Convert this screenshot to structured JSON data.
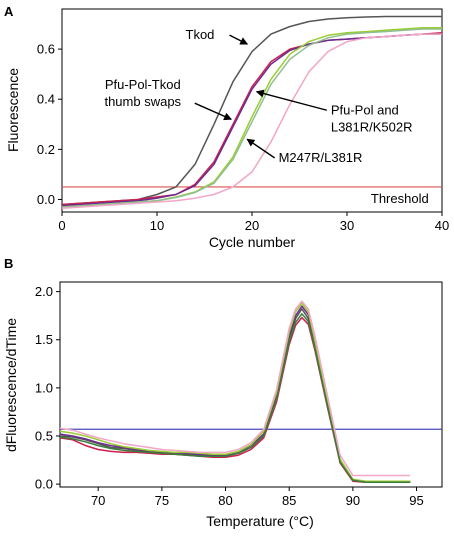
{
  "chart_data": [
    {
      "type": "line",
      "panel": "A",
      "xlabel": "Cycle number",
      "ylabel": "Fluorescence",
      "xlim": [
        0,
        40
      ],
      "ylim": [
        -0.05,
        0.76
      ],
      "xticks": [
        "0",
        "10",
        "20",
        "30",
        "40"
      ],
      "yticks": [
        "0.0",
        "0.2",
        "0.4",
        "0.6"
      ],
      "grid": false,
      "threshold": {
        "label": "Threshold",
        "value": 0.05,
        "color": "#d9534f"
      },
      "series": [
        {
          "color": "#555555",
          "x": [
            0,
            2,
            4,
            6,
            8,
            10,
            12,
            14,
            16,
            18,
            20,
            22,
            24,
            26,
            28,
            30,
            32,
            34,
            36,
            38,
            40
          ],
          "y": [
            -0.02,
            -0.015,
            -0.01,
            -0.005,
            0.0,
            0.02,
            0.05,
            0.14,
            0.3,
            0.47,
            0.59,
            0.66,
            0.69,
            0.71,
            0.72,
            0.725,
            0.728,
            0.73,
            0.73,
            0.73,
            0.73
          ]
        },
        {
          "color": "#cc1f4d",
          "x": [
            0,
            2,
            4,
            6,
            8,
            10,
            12,
            14,
            16,
            18,
            20,
            22,
            24,
            26,
            28,
            30,
            32,
            34,
            36,
            38,
            40
          ],
          "y": [
            -0.02,
            -0.015,
            -0.01,
            -0.005,
            0.0,
            0.01,
            0.02,
            0.06,
            0.15,
            0.3,
            0.45,
            0.55,
            0.6,
            0.62,
            0.635,
            0.64,
            0.645,
            0.65,
            0.655,
            0.66,
            0.665
          ]
        },
        {
          "color": "#6b2c91",
          "x": [
            0,
            2,
            4,
            6,
            8,
            10,
            12,
            14,
            16,
            18,
            20,
            22,
            24,
            26,
            28,
            30,
            32,
            34,
            36,
            38,
            40
          ],
          "y": [
            -0.025,
            -0.02,
            -0.015,
            -0.01,
            -0.005,
            0.005,
            0.02,
            0.055,
            0.14,
            0.29,
            0.44,
            0.54,
            0.595,
            0.62,
            0.635,
            0.64,
            0.645,
            0.65,
            0.655,
            0.66,
            0.66
          ]
        },
        {
          "color": "#9acd32",
          "x": [
            0,
            2,
            4,
            6,
            8,
            10,
            12,
            14,
            16,
            18,
            20,
            22,
            24,
            26,
            28,
            30,
            32,
            34,
            36,
            38,
            40
          ],
          "y": [
            -0.03,
            -0.025,
            -0.02,
            -0.015,
            -0.01,
            -0.005,
            0.01,
            0.03,
            0.07,
            0.17,
            0.33,
            0.48,
            0.58,
            0.63,
            0.655,
            0.665,
            0.67,
            0.675,
            0.68,
            0.685,
            0.685
          ]
        },
        {
          "color": "#8fbf8f",
          "x": [
            0,
            2,
            4,
            6,
            8,
            10,
            12,
            14,
            16,
            18,
            20,
            22,
            24,
            26,
            28,
            30,
            32,
            34,
            36,
            38,
            40
          ],
          "y": [
            -0.03,
            -0.025,
            -0.02,
            -0.015,
            -0.01,
            -0.005,
            0.008,
            0.028,
            0.065,
            0.16,
            0.31,
            0.46,
            0.56,
            0.615,
            0.645,
            0.66,
            0.665,
            0.67,
            0.675,
            0.68,
            0.68
          ]
        },
        {
          "color": "#f2a6c8",
          "x": [
            0,
            2,
            4,
            6,
            8,
            10,
            12,
            14,
            16,
            18,
            20,
            22,
            24,
            26,
            28,
            30,
            32,
            34,
            36,
            38,
            40
          ],
          "y": [
            -0.035,
            -0.03,
            -0.025,
            -0.02,
            -0.015,
            -0.01,
            -0.005,
            0.005,
            0.02,
            0.05,
            0.11,
            0.23,
            0.38,
            0.51,
            0.59,
            0.63,
            0.645,
            0.65,
            0.655,
            0.66,
            0.66
          ]
        }
      ],
      "annotations": [
        {
          "text": [
            "Tkod"
          ],
          "x": 13,
          "y": 0.64,
          "arrow_to": [
            19.5,
            0.62
          ]
        },
        {
          "text": [
            "Pfu-Pol-Tkod",
            "thumb swaps"
          ],
          "x": 8.5,
          "y": 0.44,
          "arrow_to": [
            17.8,
            0.32
          ]
        },
        {
          "text": [
            "Pfu-Pol and",
            "L381R/K502R"
          ],
          "x": 28.3,
          "y": 0.34,
          "arrow_to": [
            20.5,
            0.43
          ]
        },
        {
          "text": [
            "M247R/L381R"
          ],
          "x": 22.8,
          "y": 0.15,
          "arrow_to": [
            19.5,
            0.24
          ]
        }
      ]
    },
    {
      "type": "line",
      "panel": "B",
      "xlabel": "Temperature (°C)",
      "ylabel": "dFluorescence/dTime",
      "xlim": [
        67,
        97
      ],
      "ylim": [
        -0.03,
        2.1
      ],
      "xticks": [
        "70",
        "75",
        "80",
        "85",
        "90",
        "95"
      ],
      "yticks": [
        "0.0",
        "0.5",
        "1.0",
        "1.5",
        "2.0"
      ],
      "grid": false,
      "threshold": {
        "value": 0.57,
        "color": "#4a4ab8"
      },
      "series": [
        {
          "color": "#555555",
          "x": [
            67,
            68,
            69,
            70,
            71,
            72,
            73,
            74,
            75,
            76,
            77,
            78,
            79,
            80,
            81,
            82,
            83,
            84,
            85,
            85.5,
            86,
            86.5,
            87,
            88,
            89,
            90,
            91,
            92,
            93,
            94.5
          ],
          "y": [
            0.5,
            0.49,
            0.46,
            0.42,
            0.38,
            0.37,
            0.35,
            0.33,
            0.32,
            0.32,
            0.31,
            0.3,
            0.29,
            0.29,
            0.32,
            0.38,
            0.5,
            0.9,
            1.52,
            1.72,
            1.82,
            1.72,
            1.45,
            0.85,
            0.25,
            0.04,
            0.02,
            0.02,
            0.02,
            0.02
          ]
        },
        {
          "color": "#cc1f4d",
          "x": [
            67,
            68,
            69,
            70,
            71,
            72,
            73,
            74,
            75,
            76,
            77,
            78,
            79,
            80,
            81,
            82,
            83,
            84,
            85,
            85.5,
            86,
            86.5,
            87,
            88,
            89,
            90,
            91,
            92,
            93,
            94.5
          ],
          "y": [
            0.48,
            0.46,
            0.4,
            0.36,
            0.34,
            0.33,
            0.33,
            0.32,
            0.31,
            0.31,
            0.3,
            0.29,
            0.28,
            0.28,
            0.3,
            0.36,
            0.48,
            0.85,
            1.45,
            1.65,
            1.73,
            1.66,
            1.4,
            0.8,
            0.22,
            0.03,
            0.02,
            0.02,
            0.02,
            0.02
          ]
        },
        {
          "color": "#6b2c91",
          "x": [
            67,
            68,
            69,
            70,
            71,
            72,
            73,
            74,
            75,
            76,
            77,
            78,
            79,
            80,
            81,
            82,
            83,
            84,
            85,
            85.5,
            86,
            86.5,
            87,
            88,
            89,
            90,
            91,
            92,
            93,
            94.5
          ],
          "y": [
            0.52,
            0.5,
            0.47,
            0.43,
            0.4,
            0.38,
            0.36,
            0.34,
            0.33,
            0.32,
            0.32,
            0.31,
            0.3,
            0.3,
            0.33,
            0.4,
            0.52,
            0.92,
            1.55,
            1.75,
            1.85,
            1.76,
            1.48,
            0.86,
            0.24,
            0.04,
            0.03,
            0.03,
            0.03,
            0.03
          ]
        },
        {
          "color": "#9acd32",
          "x": [
            67,
            68,
            69,
            70,
            71,
            72,
            73,
            74,
            75,
            76,
            77,
            78,
            79,
            80,
            81,
            82,
            83,
            84,
            85,
            85.5,
            86,
            86.5,
            87,
            88,
            89,
            90,
            91,
            92,
            93,
            94.5
          ],
          "y": [
            0.55,
            0.53,
            0.5,
            0.46,
            0.42,
            0.39,
            0.37,
            0.35,
            0.34,
            0.33,
            0.33,
            0.32,
            0.31,
            0.31,
            0.34,
            0.41,
            0.55,
            0.95,
            1.58,
            1.79,
            1.88,
            1.79,
            1.5,
            0.88,
            0.26,
            0.05,
            0.03,
            0.03,
            0.03,
            0.03
          ]
        },
        {
          "color": "#3a7d3a",
          "x": [
            67,
            68,
            69,
            70,
            71,
            72,
            73,
            74,
            75,
            76,
            77,
            78,
            79,
            80,
            81,
            82,
            83,
            84,
            85,
            85.5,
            86,
            86.5,
            87,
            88,
            89,
            90,
            91,
            92,
            93,
            94.5
          ],
          "y": [
            0.49,
            0.47,
            0.44,
            0.4,
            0.37,
            0.35,
            0.34,
            0.33,
            0.32,
            0.31,
            0.3,
            0.29,
            0.29,
            0.29,
            0.32,
            0.38,
            0.5,
            0.88,
            1.48,
            1.68,
            1.77,
            1.69,
            1.42,
            0.82,
            0.23,
            0.04,
            0.02,
            0.02,
            0.02,
            0.02
          ]
        },
        {
          "color": "#f2a6c8",
          "x": [
            67,
            68,
            69,
            70,
            71,
            72,
            73,
            74,
            75,
            76,
            77,
            78,
            79,
            80,
            81,
            82,
            83,
            84,
            85,
            85.5,
            86,
            86.5,
            87,
            88,
            89,
            90,
            91,
            92,
            93,
            94.5
          ],
          "y": [
            0.58,
            0.56,
            0.52,
            0.48,
            0.45,
            0.42,
            0.4,
            0.38,
            0.36,
            0.35,
            0.34,
            0.33,
            0.33,
            0.33,
            0.36,
            0.43,
            0.57,
            0.98,
            1.62,
            1.82,
            1.9,
            1.82,
            1.55,
            0.92,
            0.3,
            0.09,
            0.09,
            0.09,
            0.09,
            0.09
          ]
        }
      ]
    }
  ]
}
